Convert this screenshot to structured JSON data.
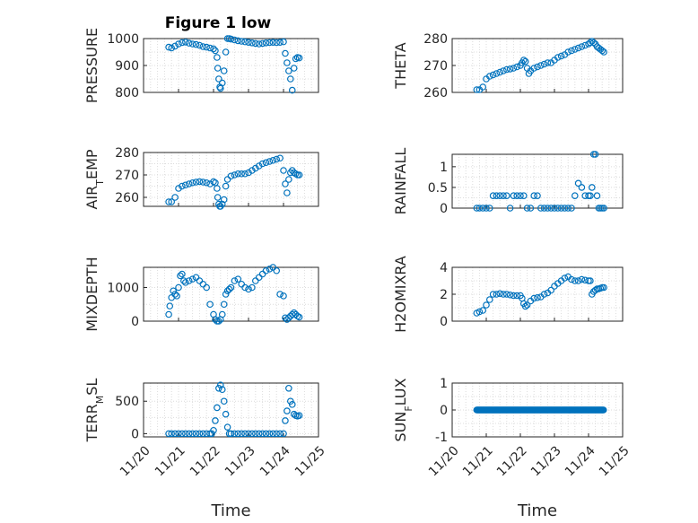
{
  "figure": {
    "title": "Figure 1 low"
  },
  "colors": {
    "marker": "#0072BD",
    "axis": "#262626",
    "grid": "#dcdcdc",
    "background": "#ffffff"
  },
  "chart_data": [
    {
      "type": "scatter",
      "ylabel": "PRESSURE",
      "ylabel_sub": null,
      "ylim": [
        800,
        1000
      ],
      "yticks": [
        800,
        900,
        1000
      ],
      "xlim": [
        0,
        5
      ],
      "xticks": [],
      "xlabel": "",
      "grid": true,
      "x": [
        0.72,
        0.8,
        0.9,
        1.0,
        1.1,
        1.2,
        1.3,
        1.4,
        1.5,
        1.6,
        1.7,
        1.8,
        1.9,
        2.0,
        2.05,
        2.1,
        2.12,
        2.15,
        2.18,
        2.2,
        2.25,
        2.3,
        2.35,
        2.4,
        2.45,
        2.5,
        2.6,
        2.7,
        2.8,
        2.9,
        3.0,
        3.1,
        3.2,
        3.3,
        3.4,
        3.5,
        3.6,
        3.7,
        3.8,
        3.9,
        4.0,
        4.05,
        4.1,
        4.15,
        4.2,
        4.25,
        4.3,
        4.35,
        4.4,
        4.45
      ],
      "y": [
        968,
        965,
        972,
        980,
        985,
        987,
        983,
        980,
        978,
        975,
        970,
        968,
        965,
        962,
        955,
        930,
        890,
        850,
        820,
        815,
        835,
        880,
        950,
        1005,
        1002,
        998,
        995,
        992,
        990,
        988,
        986,
        984,
        982,
        980,
        982,
        984,
        985,
        986,
        985,
        986,
        988,
        945,
        910,
        880,
        850,
        808,
        890,
        925,
        930,
        928
      ]
    },
    {
      "type": "scatter",
      "ylabel": "THETA",
      "ylabel_sub": null,
      "ylim": [
        260,
        280
      ],
      "yticks": [
        260,
        270,
        280
      ],
      "xlim": [
        0,
        5
      ],
      "xticks": [],
      "xlabel": "",
      "grid": true,
      "x": [
        0.72,
        0.8,
        0.9,
        1.0,
        1.1,
        1.2,
        1.3,
        1.4,
        1.5,
        1.6,
        1.7,
        1.8,
        1.9,
        2.0,
        2.05,
        2.1,
        2.15,
        2.2,
        2.25,
        2.3,
        2.4,
        2.5,
        2.6,
        2.7,
        2.8,
        2.9,
        3.0,
        3.1,
        3.2,
        3.3,
        3.4,
        3.5,
        3.6,
        3.7,
        3.8,
        3.9,
        4.0,
        4.05,
        4.1,
        4.15,
        4.2,
        4.25,
        4.3,
        4.35,
        4.4,
        4.45
      ],
      "y": [
        261,
        261,
        262,
        265,
        266,
        266.5,
        267,
        267.5,
        268,
        268.5,
        268.7,
        269,
        269.5,
        270,
        271,
        272,
        271.5,
        269,
        267,
        268,
        269,
        269.5,
        270,
        270.5,
        271,
        271,
        272,
        273,
        273.5,
        274,
        275,
        275.5,
        276,
        276.5,
        277,
        277.5,
        278,
        278.5,
        279,
        278.5,
        278,
        277,
        276.5,
        276,
        275.5,
        275
      ]
    },
    {
      "type": "scatter",
      "ylabel": "AIR",
      "ylabel_sub": "T",
      "ylabel_tail": "EMP",
      "ylim": [
        256,
        280
      ],
      "yticks": [
        260,
        270,
        280
      ],
      "xlim": [
        0,
        5
      ],
      "xticks": [],
      "xlabel": "",
      "grid": true,
      "x": [
        0.72,
        0.8,
        0.9,
        1.0,
        1.1,
        1.2,
        1.3,
        1.4,
        1.5,
        1.6,
        1.7,
        1.8,
        1.9,
        2.0,
        2.05,
        2.1,
        2.12,
        2.15,
        2.18,
        2.2,
        2.25,
        2.3,
        2.35,
        2.4,
        2.5,
        2.6,
        2.7,
        2.8,
        2.9,
        3.0,
        3.1,
        3.2,
        3.3,
        3.4,
        3.5,
        3.6,
        3.7,
        3.8,
        3.9,
        4.0,
        4.05,
        4.1,
        4.15,
        4.2,
        4.25,
        4.3,
        4.35,
        4.4,
        4.45
      ],
      "y": [
        258,
        258,
        260,
        264,
        265,
        265.5,
        266,
        266.5,
        266.8,
        267,
        266.8,
        266.5,
        266,
        267,
        266.5,
        264,
        260,
        257,
        256,
        256,
        257,
        259,
        265,
        268,
        269.5,
        270,
        270.5,
        270.5,
        270.5,
        271,
        272,
        273,
        274,
        275,
        275.5,
        276,
        276.5,
        277,
        277.5,
        272,
        266,
        262,
        268,
        271,
        272,
        271,
        270.5,
        270,
        270
      ]
    },
    {
      "type": "scatter",
      "ylabel": "RAINFALL",
      "ylabel_sub": null,
      "ylim": [
        0,
        1.3
      ],
      "yticks": [
        0,
        0.5,
        1
      ],
      "ytick_labels": [
        "0",
        "0.5",
        "1"
      ],
      "xlim": [
        0,
        5
      ],
      "xticks": [],
      "xlabel": "",
      "grid": true,
      "x": [
        0.72,
        0.8,
        0.9,
        1.0,
        1.1,
        1.2,
        1.3,
        1.4,
        1.5,
        1.6,
        1.7,
        1.8,
        1.9,
        2.0,
        2.1,
        2.2,
        2.3,
        2.4,
        2.5,
        2.6,
        2.7,
        2.8,
        2.9,
        3.0,
        3.1,
        3.2,
        3.3,
        3.4,
        3.5,
        3.6,
        3.7,
        3.8,
        3.9,
        4.0,
        4.05,
        4.1,
        4.15,
        4.2,
        4.25,
        4.3,
        4.35,
        4.4,
        4.45
      ],
      "y": [
        0,
        0,
        0,
        0,
        0,
        0.3,
        0.3,
        0.3,
        0.3,
        0.3,
        0,
        0.3,
        0.3,
        0.3,
        0.3,
        0,
        0,
        0.3,
        0.3,
        0,
        0,
        0,
        0,
        0,
        0,
        0,
        0,
        0,
        0,
        0.3,
        0.6,
        0.5,
        0.3,
        0.3,
        0.3,
        0.5,
        1.3,
        1.3,
        0.3,
        0,
        0,
        0,
        0
      ]
    },
    {
      "type": "scatter",
      "ylabel": "MIXDEPTH",
      "ylabel_sub": null,
      "ylim": [
        0,
        1600
      ],
      "yticks": [
        0,
        1000
      ],
      "xlim": [
        0,
        5
      ],
      "xticks": [],
      "xlabel": "",
      "grid": true,
      "x": [
        0.72,
        0.75,
        0.8,
        0.85,
        0.9,
        0.95,
        1.0,
        1.05,
        1.1,
        1.15,
        1.2,
        1.3,
        1.4,
        1.5,
        1.6,
        1.7,
        1.8,
        1.9,
        2.0,
        2.05,
        2.1,
        2.15,
        2.2,
        2.25,
        2.3,
        2.35,
        2.4,
        2.45,
        2.5,
        2.6,
        2.7,
        2.8,
        2.9,
        3.0,
        3.1,
        3.2,
        3.3,
        3.4,
        3.5,
        3.6,
        3.7,
        3.8,
        3.9,
        4.0,
        4.05,
        4.1,
        4.15,
        4.2,
        4.25,
        4.3,
        4.35,
        4.4,
        4.45
      ],
      "y": [
        200,
        450,
        700,
        900,
        800,
        750,
        1000,
        1350,
        1400,
        1200,
        1150,
        1200,
        1250,
        1300,
        1200,
        1100,
        1000,
        500,
        200,
        50,
        0,
        0,
        50,
        200,
        500,
        800,
        900,
        950,
        1000,
        1200,
        1250,
        1100,
        1000,
        950,
        1000,
        1200,
        1300,
        1400,
        1500,
        1550,
        1600,
        1500,
        800,
        750,
        100,
        50,
        100,
        150,
        200,
        250,
        200,
        150,
        120
      ]
    },
    {
      "type": "scatter",
      "ylabel": "H2OMIXRA",
      "ylabel_sub": null,
      "ylim": [
        0,
        4
      ],
      "yticks": [
        0,
        2,
        4
      ],
      "xlim": [
        0,
        5
      ],
      "xticks": [],
      "xlabel": "",
      "grid": true,
      "x": [
        0.72,
        0.8,
        0.9,
        1.0,
        1.1,
        1.2,
        1.3,
        1.4,
        1.5,
        1.6,
        1.7,
        1.8,
        1.9,
        2.0,
        2.05,
        2.1,
        2.15,
        2.2,
        2.3,
        2.4,
        2.5,
        2.6,
        2.7,
        2.8,
        2.9,
        3.0,
        3.1,
        3.2,
        3.3,
        3.4,
        3.5,
        3.6,
        3.7,
        3.8,
        3.9,
        4.0,
        4.05,
        4.1,
        4.15,
        4.2,
        4.25,
        4.3,
        4.35,
        4.4,
        4.45
      ],
      "y": [
        0.6,
        0.7,
        0.8,
        1.2,
        1.6,
        2.0,
        2.0,
        2.05,
        2.0,
        2.0,
        1.95,
        1.9,
        1.9,
        1.9,
        1.7,
        1.3,
        1.1,
        1.2,
        1.5,
        1.7,
        1.75,
        1.8,
        2.0,
        2.1,
        2.3,
        2.6,
        2.8,
        3.0,
        3.2,
        3.3,
        3.1,
        3.0,
        3.0,
        3.1,
        3.05,
        3.0,
        3.0,
        2.0,
        2.2,
        2.3,
        2.4,
        2.4,
        2.45,
        2.5,
        2.5
      ]
    },
    {
      "type": "scatter",
      "ylabel": "TERR",
      "ylabel_sub": "M",
      "ylabel_tail": "SL",
      "ylim": [
        -50,
        780
      ],
      "yticks": [
        0,
        500
      ],
      "xlim": [
        0,
        5
      ],
      "xticks": [
        0,
        1,
        2,
        3,
        4,
        5
      ],
      "xtick_labels": [
        "11/20",
        "11/21",
        "11/22",
        "11/23",
        "11/24",
        "11/25"
      ],
      "xlabel": "Time",
      "grid": true,
      "x": [
        0.72,
        0.8,
        0.9,
        1.0,
        1.1,
        1.2,
        1.3,
        1.4,
        1.5,
        1.6,
        1.7,
        1.8,
        1.9,
        1.95,
        2.0,
        2.05,
        2.1,
        2.15,
        2.2,
        2.25,
        2.3,
        2.35,
        2.4,
        2.45,
        2.5,
        2.6,
        2.7,
        2.8,
        2.9,
        3.0,
        3.1,
        3.2,
        3.3,
        3.4,
        3.5,
        3.6,
        3.7,
        3.8,
        3.9,
        4.0,
        4.05,
        4.1,
        4.15,
        4.2,
        4.25,
        4.3,
        4.35,
        4.4,
        4.45
      ],
      "y": [
        0,
        0,
        0,
        0,
        0,
        0,
        0,
        0,
        0,
        0,
        0,
        0,
        0,
        0,
        50,
        200,
        400,
        700,
        750,
        680,
        500,
        300,
        100,
        0,
        0,
        0,
        0,
        0,
        0,
        0,
        0,
        0,
        0,
        0,
        0,
        0,
        0,
        0,
        0,
        0,
        200,
        350,
        700,
        500,
        450,
        300,
        280,
        270,
        280
      ]
    },
    {
      "type": "scatter",
      "ylabel": "SUN",
      "ylabel_sub": "F",
      "ylabel_tail": "LUX",
      "ylim": [
        -1,
        1
      ],
      "yticks": [
        -1,
        0,
        1
      ],
      "xlim": [
        0,
        5
      ],
      "xticks": [
        0,
        1,
        2,
        3,
        4,
        5
      ],
      "xtick_labels": [
        "11/20",
        "11/21",
        "11/22",
        "11/23",
        "11/24",
        "11/25"
      ],
      "xlabel": "Time",
      "grid": true,
      "x_range": [
        0.72,
        4.45
      ],
      "constant_y": 0
    }
  ]
}
